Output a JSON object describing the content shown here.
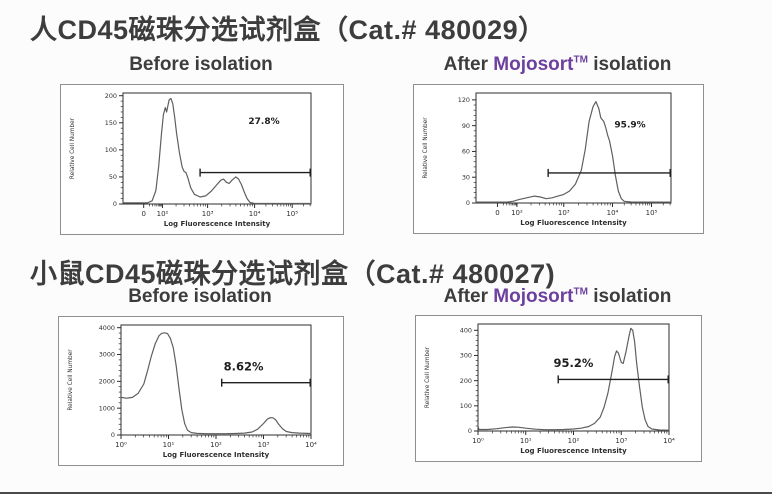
{
  "page": {
    "background": "#fcfcfc"
  },
  "colors": {
    "title": "#3d3d3d",
    "text": "#3d3d3d",
    "brand_purple": "#6d3f9e",
    "curve": "#5f5f5f",
    "gate": "#1f1f1f",
    "plot_border": "#2e2e2e",
    "panel_border": "#8f8f8f",
    "tick_text": "#2e2e2e",
    "bottom_line": "#4a4a4a"
  },
  "sections": [
    {
      "title": "人CD45磁珠分选试剂盒（Cat.# 480029）",
      "headers": [
        {
          "plain": "Before isolation"
        },
        {
          "prefix": "After ",
          "brand": "Mojosort",
          "tm": "TM",
          "suffix": " isolation"
        }
      ]
    },
    {
      "title": "小鼠CD45磁珠分选试剂盒（Cat.# 480027)",
      "headers": [
        {
          "plain": "Before  isolation"
        },
        {
          "prefix": "After ",
          "brand": "Mojosort",
          "tm": "TM",
          "suffix": " isolation"
        }
      ]
    }
  ],
  "chart_data": [
    {
      "id": "human-before-isolation",
      "type": "line",
      "title": "Before isolation",
      "xlabel": "Log Fluorescence Intensity",
      "ylabel": "Relative Cell Number",
      "ylim": [
        0,
        200
      ],
      "ytop": 205,
      "yticks": [
        0,
        50,
        100,
        150,
        200
      ],
      "xticks": [
        {
          "label": "0",
          "f": 0.11
        },
        {
          "label": "10²",
          "f": 0.21
        },
        {
          "label": "10³",
          "f": 0.45
        },
        {
          "label": "10⁴",
          "f": 0.7
        },
        {
          "label": "10⁵",
          "f": 0.9
        }
      ],
      "gate": {
        "y": 58,
        "x1": 0.41,
        "x2": 1.0,
        "label": "27.8%",
        "label_x": 0.75,
        "label_y": 148
      },
      "curve": [
        [
          0.0,
          2
        ],
        [
          0.13,
          2
        ],
        [
          0.155,
          6
        ],
        [
          0.175,
          25
        ],
        [
          0.19,
          70
        ],
        [
          0.205,
          130
        ],
        [
          0.215,
          165
        ],
        [
          0.225,
          178
        ],
        [
          0.232,
          170
        ],
        [
          0.245,
          192
        ],
        [
          0.255,
          195
        ],
        [
          0.265,
          185
        ],
        [
          0.275,
          160
        ],
        [
          0.285,
          130
        ],
        [
          0.3,
          95
        ],
        [
          0.315,
          68
        ],
        [
          0.325,
          60
        ],
        [
          0.335,
          58
        ],
        [
          0.345,
          48
        ],
        [
          0.36,
          30
        ],
        [
          0.38,
          18
        ],
        [
          0.41,
          13
        ],
        [
          0.44,
          15
        ],
        [
          0.47,
          24
        ],
        [
          0.5,
          36
        ],
        [
          0.52,
          44
        ],
        [
          0.535,
          46
        ],
        [
          0.55,
          40
        ],
        [
          0.565,
          38
        ],
        [
          0.58,
          44
        ],
        [
          0.6,
          50
        ],
        [
          0.615,
          46
        ],
        [
          0.63,
          36
        ],
        [
          0.645,
          22
        ],
        [
          0.66,
          10
        ],
        [
          0.675,
          3
        ],
        [
          0.7,
          1
        ],
        [
          0.95,
          1
        ],
        [
          1.0,
          1
        ]
      ]
    },
    {
      "id": "human-after-mojosort-isolation",
      "type": "line",
      "title": "After Mojosort TM isolation",
      "xlabel": "Log Fluorescence Intensity",
      "ylabel": "Relative Cell Number",
      "ylim": [
        0,
        120
      ],
      "ytop": 128,
      "yticks": [
        0,
        30,
        60,
        90,
        120
      ],
      "xticks": [
        {
          "label": "0",
          "f": 0.11
        },
        {
          "label": "10²",
          "f": 0.21
        },
        {
          "label": "10³",
          "f": 0.45
        },
        {
          "label": "10⁴",
          "f": 0.7
        },
        {
          "label": "10⁵",
          "f": 0.9
        }
      ],
      "gate": {
        "y": 35,
        "x1": 0.37,
        "x2": 1.0,
        "label": "95.9%",
        "label_x": 0.79,
        "label_y": 88
      },
      "curve": [
        [
          0.0,
          1
        ],
        [
          0.16,
          1
        ],
        [
          0.19,
          2
        ],
        [
          0.22,
          4
        ],
        [
          0.26,
          6
        ],
        [
          0.3,
          8
        ],
        [
          0.33,
          7
        ],
        [
          0.36,
          5
        ],
        [
          0.39,
          6
        ],
        [
          0.42,
          8
        ],
        [
          0.45,
          10
        ],
        [
          0.48,
          14
        ],
        [
          0.51,
          22
        ],
        [
          0.54,
          38
        ],
        [
          0.56,
          62
        ],
        [
          0.58,
          95
        ],
        [
          0.6,
          112
        ],
        [
          0.615,
          118
        ],
        [
          0.63,
          110
        ],
        [
          0.64,
          99
        ],
        [
          0.655,
          95
        ],
        [
          0.665,
          88
        ],
        [
          0.675,
          79
        ],
        [
          0.685,
          72
        ],
        [
          0.7,
          55
        ],
        [
          0.715,
          32
        ],
        [
          0.73,
          14
        ],
        [
          0.745,
          5
        ],
        [
          0.76,
          2
        ],
        [
          0.8,
          1
        ],
        [
          1.0,
          1
        ]
      ]
    },
    {
      "id": "mouse-before-isolation",
      "type": "line",
      "title": "Before isolation",
      "xlabel": "Log Fluorescence Intensity",
      "ylabel": "Relative Cell Number",
      "ylim": [
        0,
        4000
      ],
      "ytop": 4100,
      "yticks": [
        0,
        1000,
        2000,
        3000,
        4000
      ],
      "xticks": [
        {
          "label": "10⁰",
          "f": 0.0
        },
        {
          "label": "10¹",
          "f": 0.25
        },
        {
          "label": "10²",
          "f": 0.5
        },
        {
          "label": "10³",
          "f": 0.75
        },
        {
          "label": "10⁴",
          "f": 1.0
        }
      ],
      "gate": {
        "y": 1950,
        "x1": 0.53,
        "x2": 1.0,
        "label": "8.62%",
        "label_x": 0.645,
        "label_y": 2400
      },
      "curve": [
        [
          0.0,
          1400
        ],
        [
          0.03,
          1370
        ],
        [
          0.06,
          1400
        ],
        [
          0.09,
          1550
        ],
        [
          0.12,
          1900
        ],
        [
          0.14,
          2400
        ],
        [
          0.16,
          2950
        ],
        [
          0.18,
          3400
        ],
        [
          0.2,
          3700
        ],
        [
          0.215,
          3790
        ],
        [
          0.23,
          3810
        ],
        [
          0.245,
          3780
        ],
        [
          0.26,
          3600
        ],
        [
          0.275,
          3250
        ],
        [
          0.29,
          2600
        ],
        [
          0.305,
          1750
        ],
        [
          0.32,
          950
        ],
        [
          0.335,
          420
        ],
        [
          0.35,
          180
        ],
        [
          0.37,
          90
        ],
        [
          0.4,
          60
        ],
        [
          0.45,
          50
        ],
        [
          0.5,
          48
        ],
        [
          0.55,
          50
        ],
        [
          0.6,
          55
        ],
        [
          0.65,
          70
        ],
        [
          0.69,
          110
        ],
        [
          0.72,
          220
        ],
        [
          0.75,
          430
        ],
        [
          0.77,
          590
        ],
        [
          0.785,
          645
        ],
        [
          0.8,
          640
        ],
        [
          0.815,
          560
        ],
        [
          0.83,
          400
        ],
        [
          0.85,
          230
        ],
        [
          0.87,
          130
        ],
        [
          0.9,
          90
        ],
        [
          0.94,
          70
        ],
        [
          1.0,
          55
        ]
      ]
    },
    {
      "id": "mouse-after-mojosort-isolation",
      "type": "line",
      "title": "After Mojosort TM isolation",
      "xlabel": "Log Fluorescence Intensity",
      "ylabel": "Relative Cell Number",
      "ylim": [
        0,
        400
      ],
      "ytop": 425,
      "yticks": [
        0,
        100,
        200,
        300,
        400
      ],
      "xticks": [
        {
          "label": "10⁰",
          "f": 0.0
        },
        {
          "label": "10¹",
          "f": 0.25
        },
        {
          "label": "10²",
          "f": 0.5
        },
        {
          "label": "10³",
          "f": 0.75
        },
        {
          "label": "10⁴",
          "f": 1.0
        }
      ],
      "gate": {
        "y": 205,
        "x1": 0.42,
        "x2": 1.0,
        "label": "95.2%",
        "label_x": 0.5,
        "label_y": 255
      },
      "curve": [
        [
          0.0,
          20
        ],
        [
          0.005,
          6
        ],
        [
          0.05,
          6
        ],
        [
          0.1,
          9
        ],
        [
          0.14,
          13
        ],
        [
          0.18,
          16
        ],
        [
          0.21,
          15
        ],
        [
          0.25,
          11
        ],
        [
          0.3,
          7
        ],
        [
          0.35,
          5
        ],
        [
          0.4,
          5
        ],
        [
          0.45,
          6
        ],
        [
          0.5,
          8
        ],
        [
          0.54,
          11
        ],
        [
          0.58,
          18
        ],
        [
          0.61,
          30
        ],
        [
          0.64,
          55
        ],
        [
          0.66,
          95
        ],
        [
          0.68,
          150
        ],
        [
          0.7,
          230
        ],
        [
          0.715,
          295
        ],
        [
          0.725,
          318
        ],
        [
          0.735,
          310
        ],
        [
          0.75,
          272
        ],
        [
          0.76,
          268
        ],
        [
          0.775,
          315
        ],
        [
          0.79,
          375
        ],
        [
          0.8,
          408
        ],
        [
          0.81,
          400
        ],
        [
          0.82,
          355
        ],
        [
          0.83,
          275
        ],
        [
          0.845,
          180
        ],
        [
          0.86,
          95
        ],
        [
          0.875,
          45
        ],
        [
          0.89,
          18
        ],
        [
          0.91,
          8
        ],
        [
          0.95,
          4
        ],
        [
          1.0,
          3
        ]
      ]
    }
  ]
}
